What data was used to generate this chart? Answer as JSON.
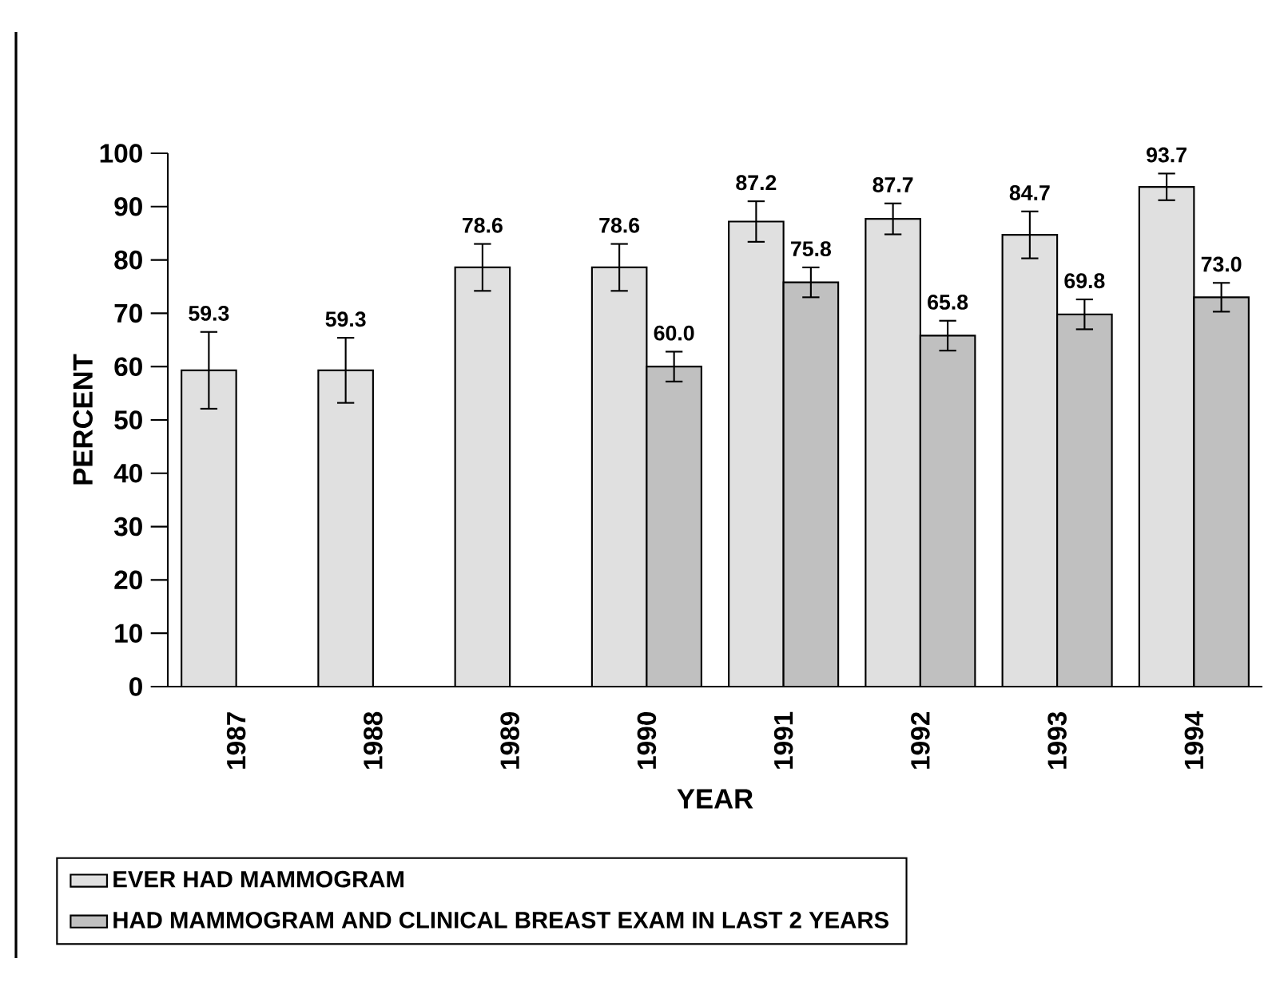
{
  "chart_data": {
    "type": "bar",
    "xlabel": "YEAR",
    "ylabel": "PERCENT",
    "categories": [
      "1987",
      "1988",
      "1989",
      "1990",
      "1991",
      "1992",
      "1993",
      "1994"
    ],
    "series": [
      {
        "name": "EVER HAD MAMMOGRAM",
        "color": "#e0e0e0",
        "values": [
          59.3,
          59.3,
          78.6,
          78.6,
          87.2,
          87.7,
          84.7,
          93.7
        ],
        "errors": [
          7.2,
          6.1,
          4.4,
          4.4,
          3.8,
          2.9,
          4.4,
          2.5
        ],
        "value_labels": [
          "59.3",
          "59.3",
          "78.6",
          "78.6",
          "87.2",
          "87.7",
          "84.7",
          "93.7"
        ]
      },
      {
        "name": "HAD MAMMOGRAM AND CLINICAL BREAST EXAM IN LAST 2 YEARS",
        "color": "#c0c0c0",
        "values": [
          null,
          null,
          null,
          60.0,
          75.8,
          65.8,
          69.8,
          73.0
        ],
        "errors": [
          null,
          null,
          null,
          2.8,
          2.8,
          2.8,
          2.8,
          2.7
        ],
        "value_labels": [
          null,
          null,
          null,
          "60.0",
          "75.8",
          "65.8",
          "69.8",
          "73.0"
        ]
      }
    ],
    "ylim": [
      0,
      100
    ],
    "yticks": [
      0,
      10,
      20,
      30,
      40,
      50,
      60,
      70,
      80,
      90,
      100
    ],
    "legend": "bottom",
    "grid": false
  }
}
